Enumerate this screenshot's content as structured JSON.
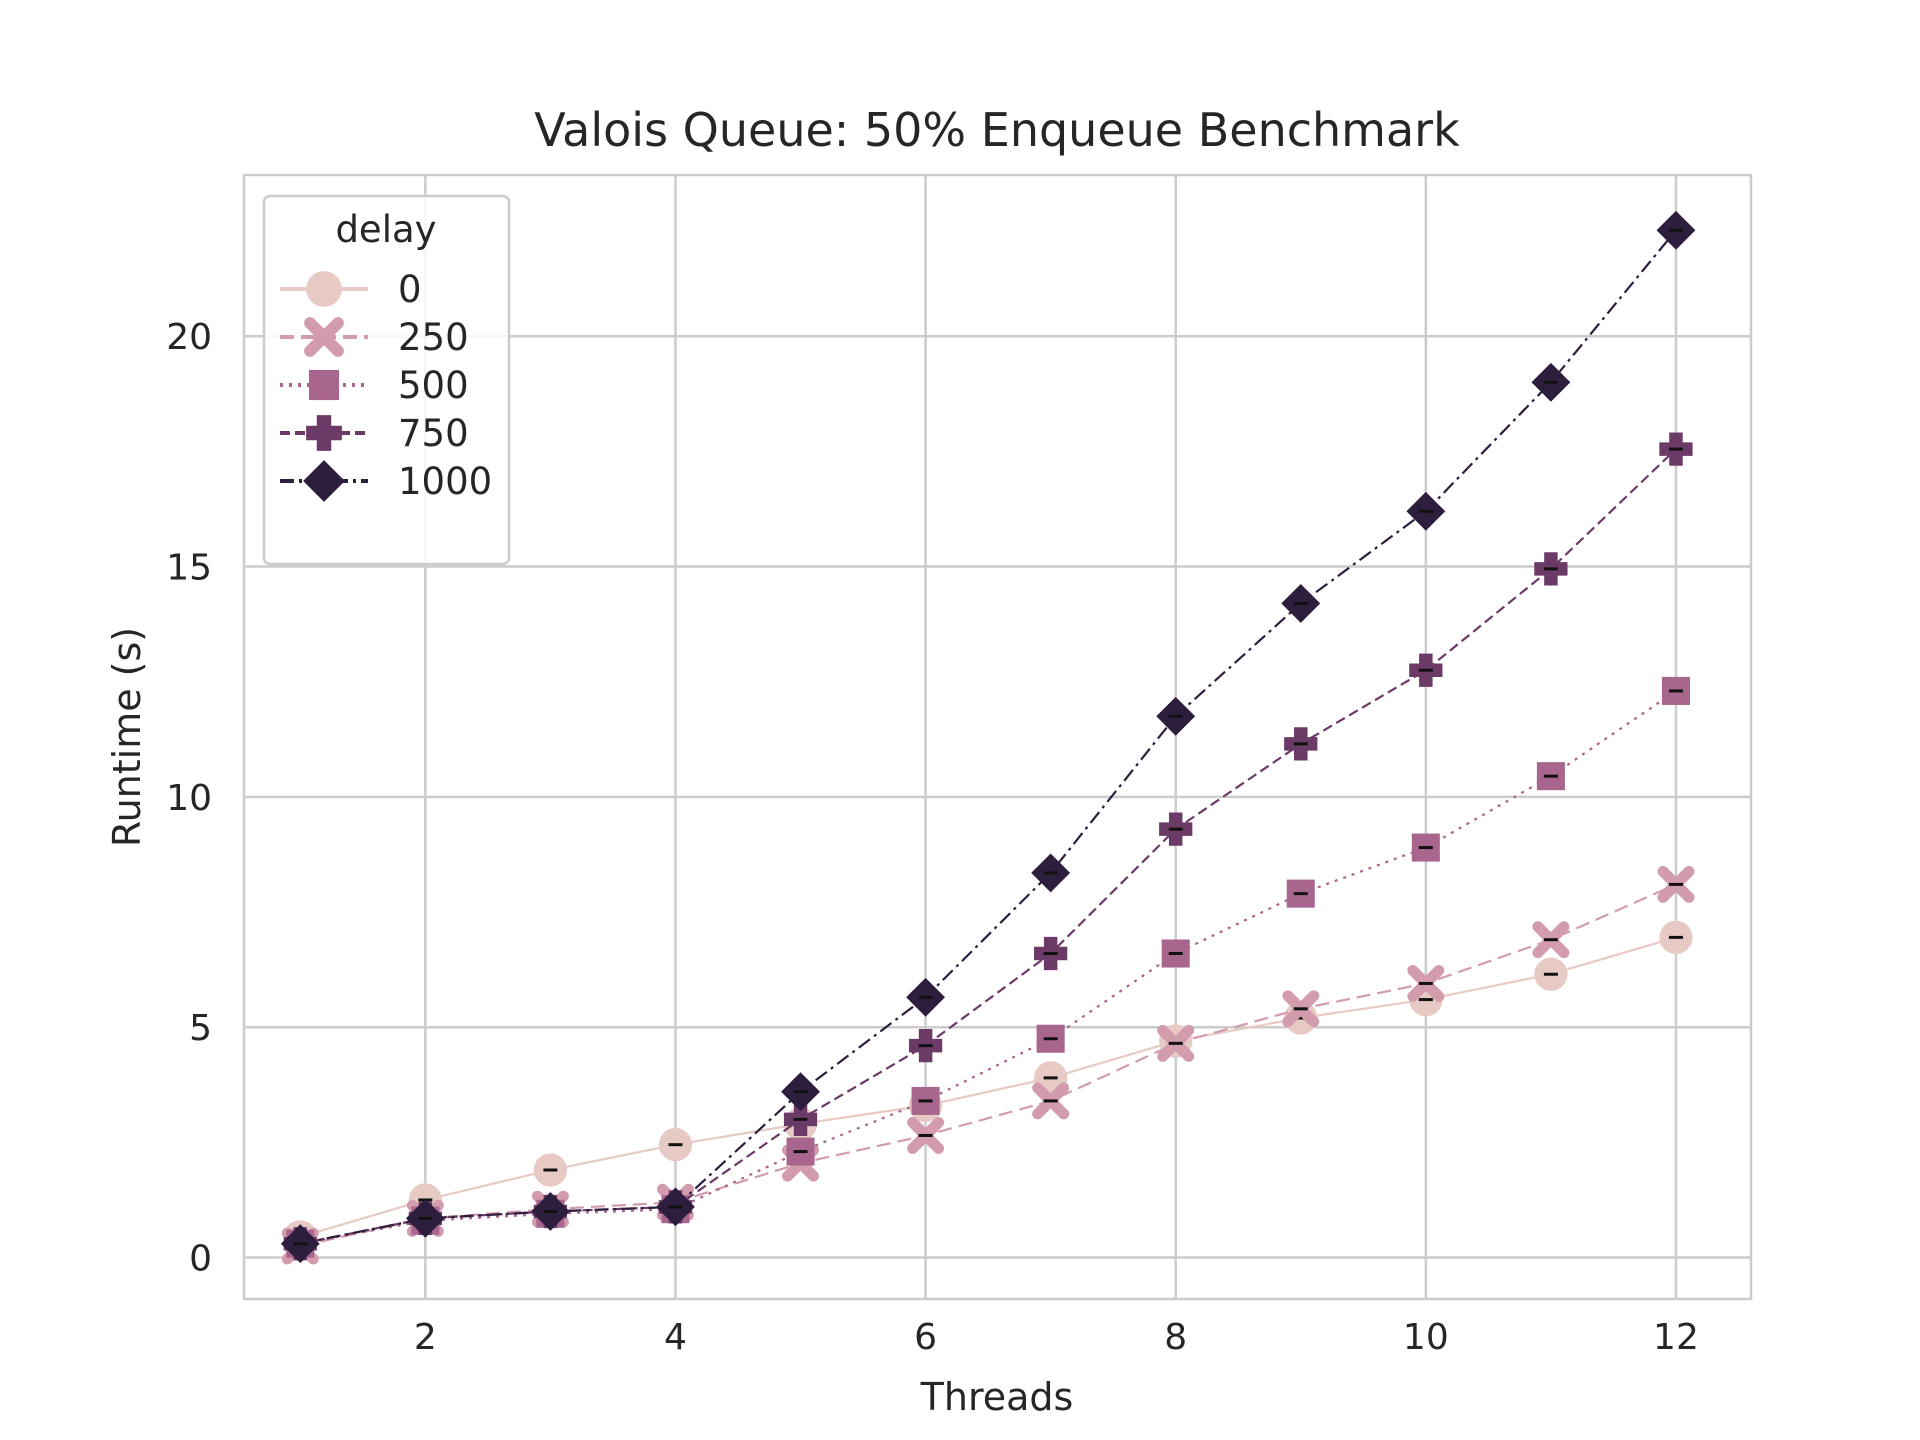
{
  "chart_data": {
    "type": "line",
    "title": "Valois Queue: 50% Enqueue Benchmark",
    "xlabel": "Threads",
    "ylabel": "Runtime (s)",
    "xlim": [
      0.55,
      12.6
    ],
    "ylim": [
      -0.9,
      23.5
    ],
    "xticks": [
      2,
      4,
      6,
      8,
      10,
      12
    ],
    "yticks": [
      0,
      5,
      10,
      15,
      20
    ],
    "grid": true,
    "legend": {
      "title": "delay",
      "position": "upper-left"
    },
    "x": [
      1,
      2,
      3,
      4,
      5,
      6,
      7,
      8,
      9,
      10,
      11,
      12
    ],
    "series": [
      {
        "name": "0",
        "color": "#e8cac5",
        "marker": "circle",
        "dash": "solid",
        "values": [
          0.45,
          1.25,
          1.9,
          2.45,
          2.9,
          3.3,
          3.9,
          4.7,
          5.2,
          5.6,
          6.15,
          6.95
        ]
      },
      {
        "name": "250",
        "color": "#d29cac",
        "marker": "x",
        "dash": "dashed",
        "values": [
          0.25,
          0.85,
          1.05,
          1.2,
          2.05,
          2.65,
          3.4,
          4.65,
          5.4,
          5.95,
          6.9,
          8.1
        ]
      },
      {
        "name": "500",
        "color": "#a8668f",
        "marker": "square",
        "dash": "dotted",
        "values": [
          0.3,
          0.8,
          0.95,
          1.05,
          2.3,
          3.4,
          4.75,
          6.6,
          7.9,
          8.9,
          10.45,
          12.3
        ]
      },
      {
        "name": "750",
        "color": "#6c3a67",
        "marker": "plus",
        "dash": "dashed-short",
        "values": [
          0.3,
          0.85,
          1.0,
          1.1,
          3.0,
          4.6,
          6.6,
          9.3,
          11.15,
          12.75,
          14.95,
          17.55
        ]
      },
      {
        "name": "1000",
        "color": "#2d1e3e",
        "marker": "diamond",
        "dash": "dashdot",
        "values": [
          0.3,
          0.85,
          1.0,
          1.1,
          3.6,
          5.65,
          8.35,
          11.75,
          14.2,
          16.2,
          19.0,
          22.3
        ]
      }
    ]
  }
}
